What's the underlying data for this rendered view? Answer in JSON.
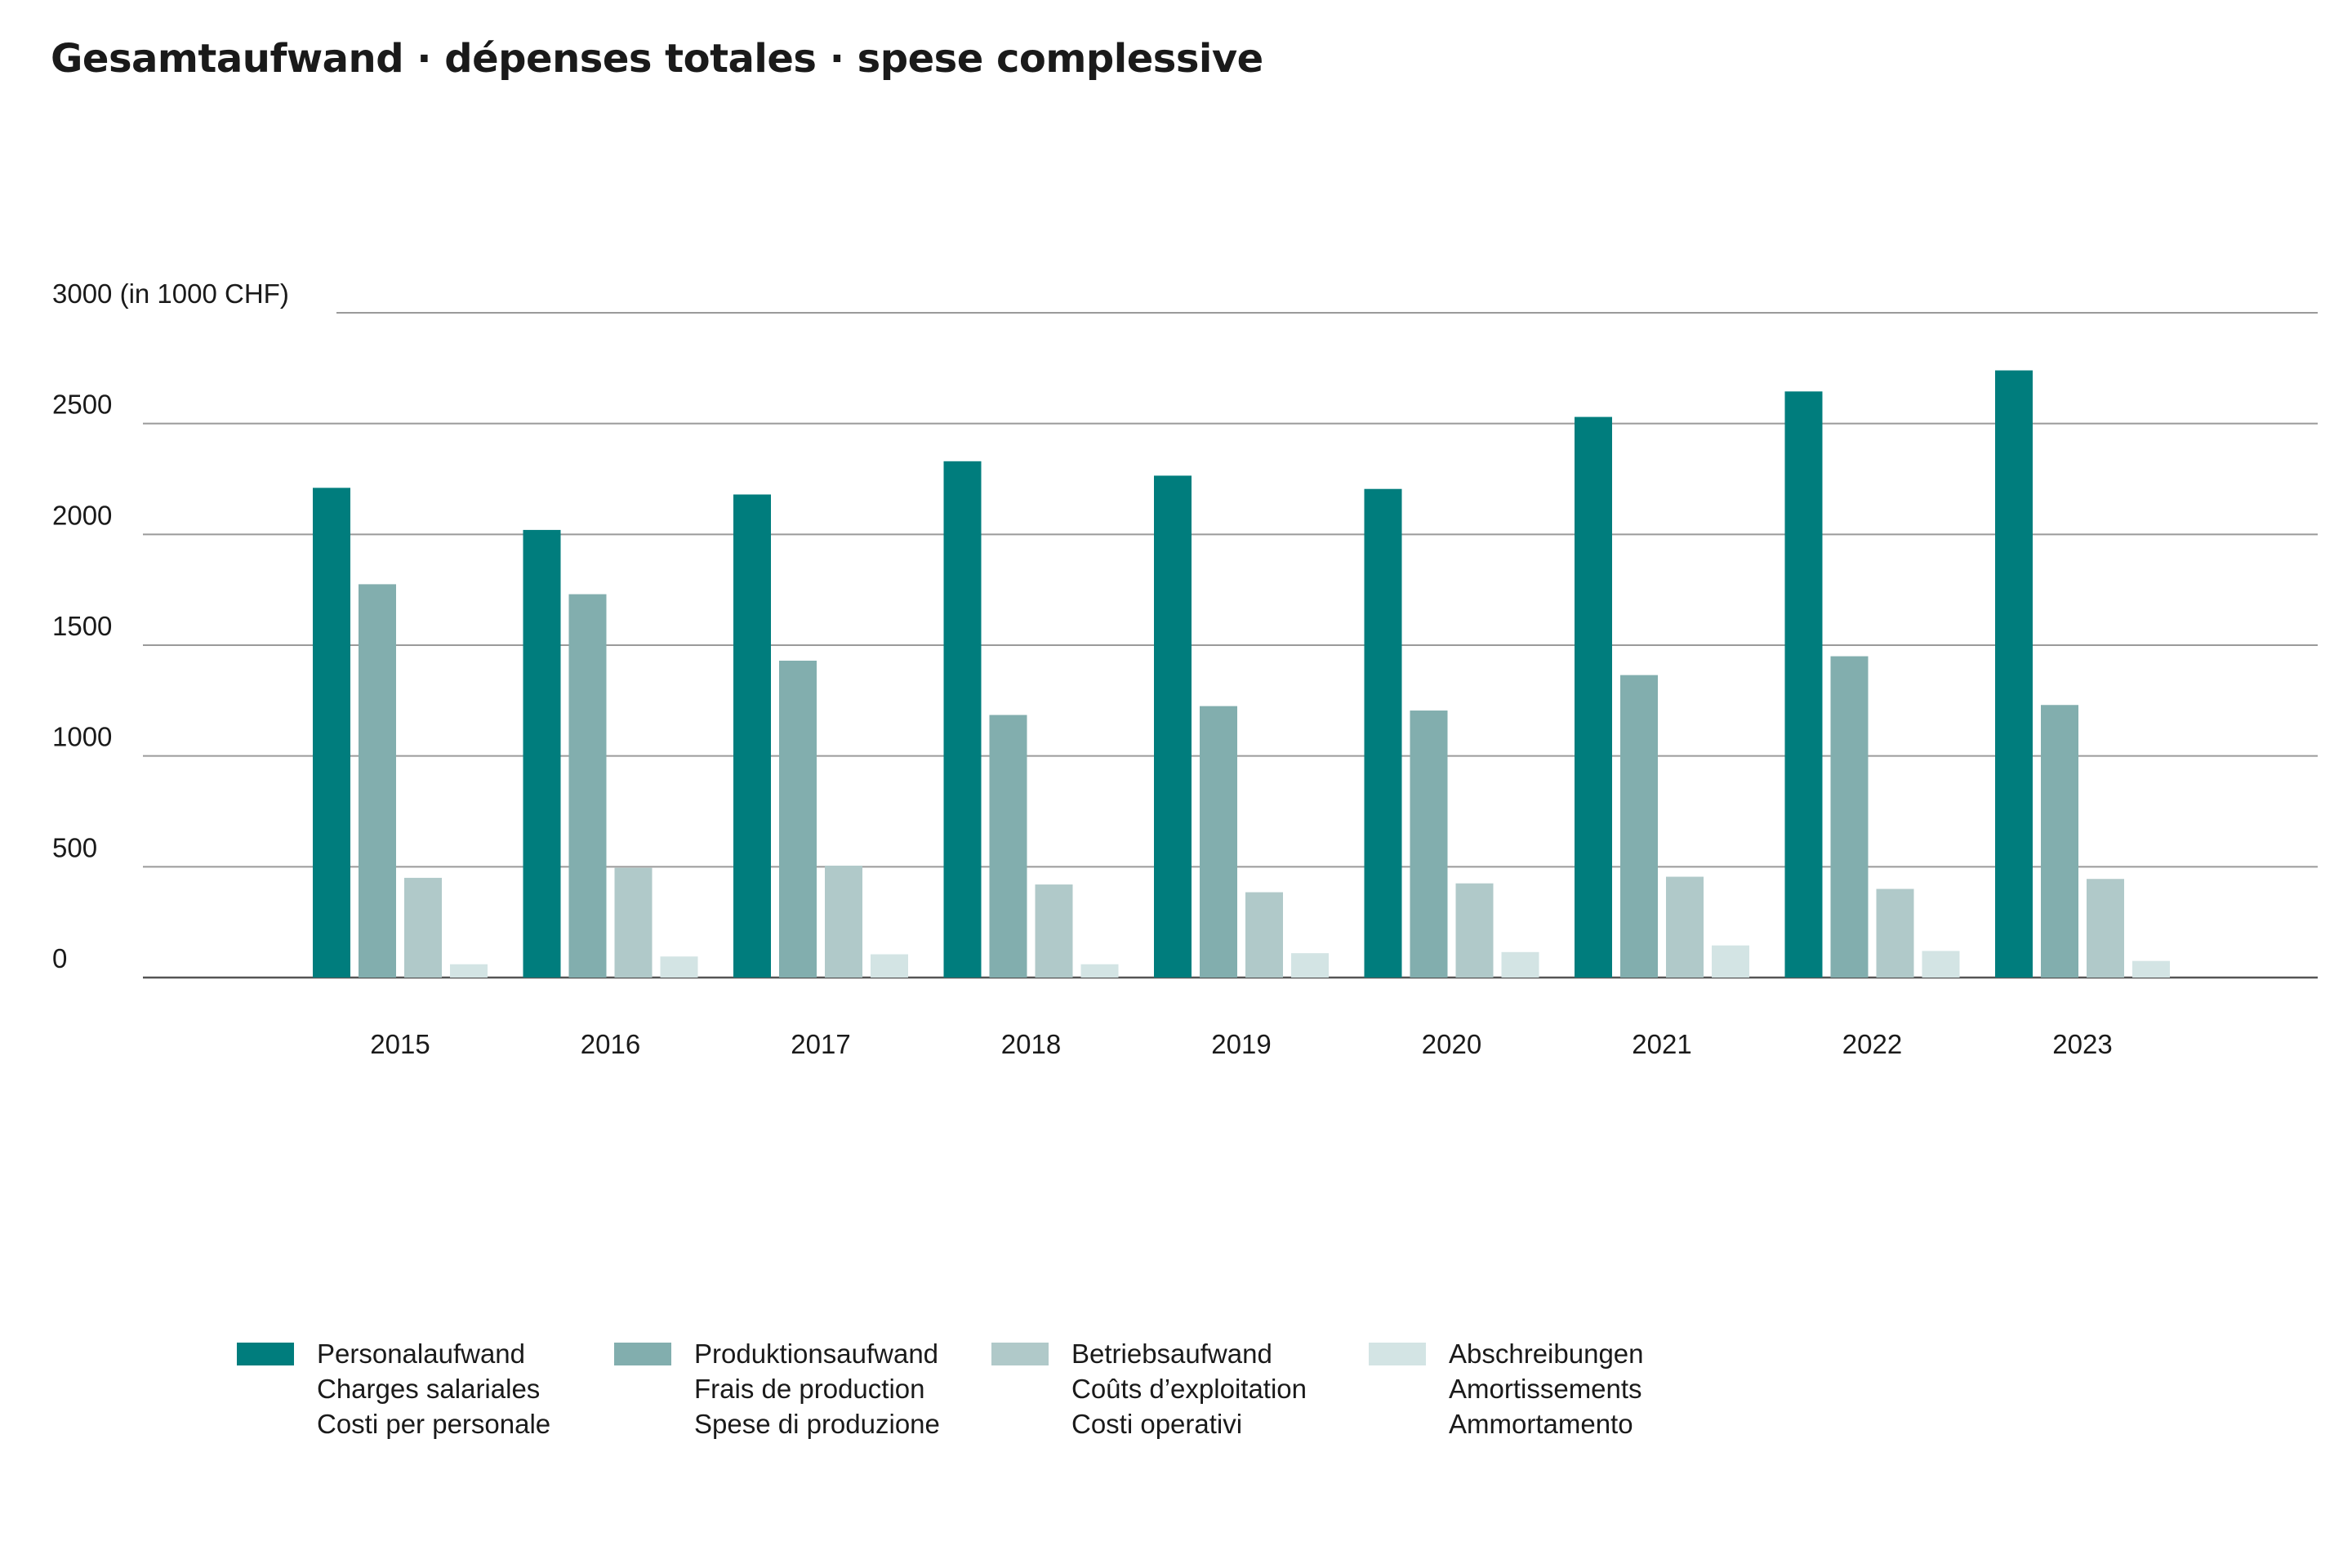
{
  "title": "Gesamtaufwand · dépenses totales · spese complessive",
  "chart_data": {
    "type": "bar",
    "categories": [
      "2015",
      "2016",
      "2017",
      "2018",
      "2019",
      "2020",
      "2021",
      "2022",
      "2023"
    ],
    "series": [
      {
        "name": "Personalaufwand / Charges salariales / Costi per personale",
        "color": "#007d7d",
        "values": [
          2210,
          2020,
          2180,
          2330,
          2265,
          2205,
          2530,
          2645,
          2740
        ]
      },
      {
        "name": "Produktionsaufwand / Frais de production / Spese di produzione",
        "color": "#82aeae",
        "values": [
          1775,
          1730,
          1430,
          1185,
          1225,
          1205,
          1365,
          1450,
          1230
        ]
      },
      {
        "name": "Betriebsaufwand / Coûts d’exploitation / Costi operativi",
        "color": "#b0c9c9",
        "values": [
          450,
          495,
          505,
          420,
          385,
          425,
          455,
          400,
          445
        ]
      },
      {
        "name": "Abschreibungen / Amortissements / Ammortamento",
        "color": "#d3e4e4",
        "values": [
          60,
          95,
          105,
          60,
          110,
          115,
          145,
          120,
          75
        ]
      }
    ],
    "ylim": [
      0,
      3000
    ],
    "yticks": [
      0,
      500,
      1000,
      1500,
      2000,
      2500,
      3000
    ],
    "ytick_labels": [
      "0",
      "500",
      "1000",
      "1500",
      "2000",
      "2500",
      "3000 (in 1000 CHF)"
    ],
    "grid": true,
    "legend_position": "bottom"
  },
  "legend": [
    {
      "color": "#007d7d",
      "lines": [
        "Personalaufwand",
        "Charges salariales",
        "Costi per personale"
      ]
    },
    {
      "color": "#82aeae",
      "lines": [
        "Produktionsaufwand",
        "Frais de production",
        "Spese di produzione"
      ]
    },
    {
      "color": "#b0c9c9",
      "lines": [
        "Betriebsaufwand",
        "Coûts d’exploitation",
        "Costi operativi"
      ]
    },
    {
      "color": "#d3e4e4",
      "lines": [
        "Abschreibungen",
        "Amortissements",
        "Ammortamento"
      ]
    }
  ]
}
